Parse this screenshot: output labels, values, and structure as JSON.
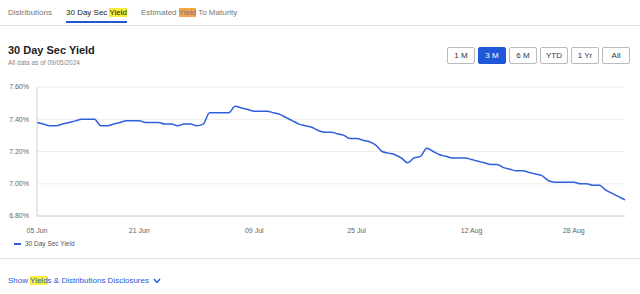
{
  "tabs": [
    "Distributions",
    "30 Day Sec Yield",
    "Estimated Yield To Maturity"
  ],
  "active_tab": "30 Day Sec Yield",
  "highlight": "Yield",
  "ranges": [
    "1 M",
    "3 M",
    "6 M",
    "YTD",
    "1 Yr",
    "All"
  ],
  "active_range": "3 M",
  "footer": "Show Yields & Distributions Disclosures",
  "chart_data": {
    "type": "line",
    "title": "30 Day Sec Yield",
    "subtitle": "All data as of 09/05/2024",
    "categories": [
      "05 Jun",
      null,
      null,
      null,
      null,
      null,
      null,
      null,
      null,
      null,
      null,
      null,
      null,
      null,
      null,
      null,
      "21 Jun",
      null,
      null,
      null,
      null,
      null,
      null,
      null,
      null,
      null,
      null,
      null,
      null,
      null,
      null,
      null,
      null,
      null,
      "09 Jul",
      null,
      null,
      null,
      null,
      null,
      null,
      null,
      null,
      null,
      null,
      null,
      null,
      null,
      null,
      null,
      "25 Jul",
      null,
      null,
      null,
      null,
      null,
      null,
      null,
      null,
      null,
      null,
      null,
      null,
      null,
      null,
      null,
      null,
      null,
      "12 Aug",
      null,
      null,
      null,
      null,
      null,
      null,
      null,
      null,
      null,
      null,
      null,
      null,
      null,
      null,
      null,
      "28 Aug",
      null,
      null,
      null,
      null,
      null,
      null,
      null,
      null
    ],
    "series": [
      {
        "name": "30 Day Sec Yield",
        "color": "#2e5fdc",
        "values": [
          7.38,
          7.37,
          7.36,
          7.36,
          7.37,
          7.38,
          7.39,
          7.4,
          7.4,
          7.4,
          7.36,
          7.36,
          7.37,
          7.38,
          7.39,
          7.39,
          7.39,
          7.38,
          7.38,
          7.38,
          7.37,
          7.37,
          7.36,
          7.37,
          7.37,
          7.36,
          7.37,
          7.44,
          7.44,
          7.44,
          7.44,
          7.48,
          7.47,
          7.46,
          7.45,
          7.45,
          7.45,
          7.44,
          7.43,
          7.41,
          7.39,
          7.37,
          7.36,
          7.35,
          7.33,
          7.32,
          7.32,
          7.31,
          7.3,
          7.28,
          7.28,
          7.27,
          7.26,
          7.24,
          7.2,
          7.19,
          7.18,
          7.16,
          7.13,
          7.16,
          7.17,
          7.22,
          7.2,
          7.18,
          7.17,
          7.16,
          7.16,
          7.16,
          7.15,
          7.14,
          7.13,
          7.12,
          7.12,
          7.1,
          7.09,
          7.08,
          7.08,
          7.07,
          7.06,
          7.05,
          7.02,
          7.01,
          7.01,
          7.01,
          7.01,
          7.0,
          7.0,
          6.99,
          6.99,
          6.96,
          6.94,
          6.92,
          6.9
        ]
      }
    ],
    "ylim": [
      6.8,
      7.6
    ],
    "yticks": [
      {
        "value": 6.8,
        "label": "6.80%"
      },
      {
        "value": 7.0,
        "label": "7.00%"
      },
      {
        "value": 7.2,
        "label": "7.20%"
      },
      {
        "value": 7.4,
        "label": "7.40%"
      },
      {
        "value": 7.6,
        "label": "7.60%"
      }
    ],
    "grid": true,
    "legend": "bottom left"
  }
}
